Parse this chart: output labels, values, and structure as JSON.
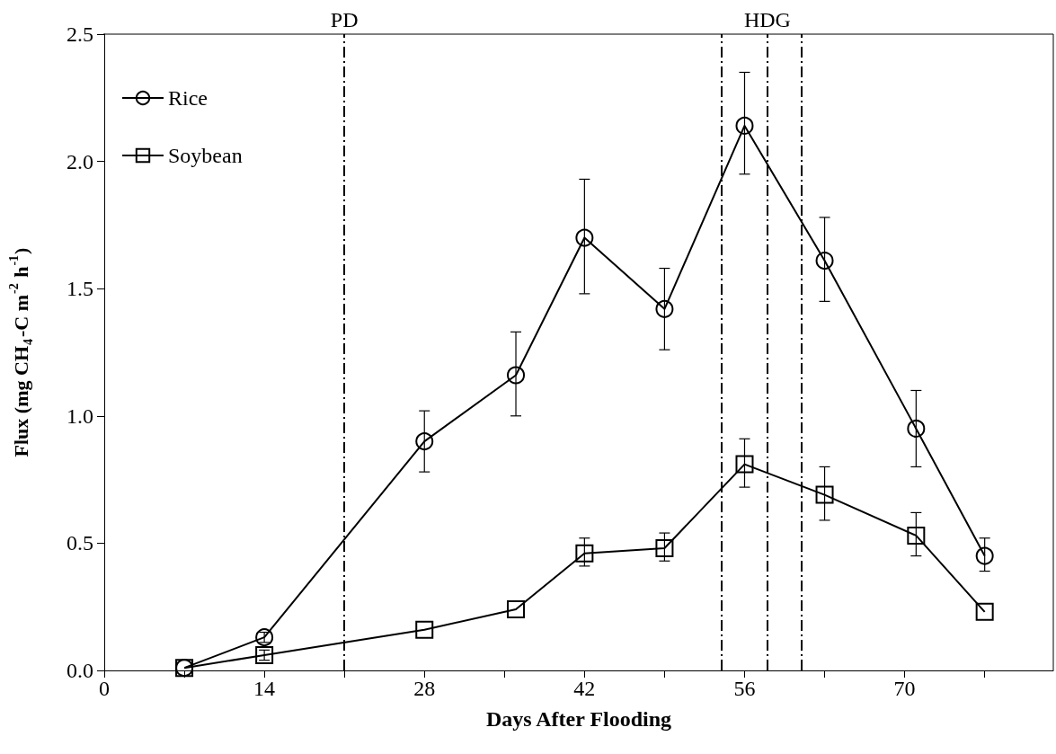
{
  "chart_data": {
    "type": "line",
    "xlabel": "Days After Flooding",
    "ylabel": "Flux (mg CH$_{4}$-C m$^{-2}$ h$^{-1}$)",
    "xlim": [
      0,
      83
    ],
    "xticks": [
      0,
      {
        "value": 7,
        "label": null
      },
      14,
      {
        "value": 21,
        "label": null
      },
      28,
      {
        "value": 35,
        "label": null
      },
      42,
      {
        "value": 49,
        "label": null
      },
      56,
      {
        "value": 63,
        "label": null
      },
      70,
      {
        "value": 77,
        "label": null
      }
    ],
    "ylim": [
      0,
      2.5
    ],
    "yticks": [
      {
        "value": 0,
        "label": "0.0"
      },
      {
        "value": 0.5,
        "label": "0.5"
      },
      {
        "value": 1,
        "label": "1.0"
      },
      {
        "value": 1.5,
        "label": "1.5"
      },
      {
        "value": 2,
        "label": "2.0"
      },
      {
        "value": 2.5,
        "label": "2.5"
      }
    ],
    "x": [
      7,
      14,
      28,
      36,
      42,
      49,
      56,
      63,
      71,
      77
    ],
    "series": [
      {
        "name": "Rice",
        "color": "#000000",
        "marker": "circle",
        "values": [
          0.01,
          0.13,
          0.9,
          1.16,
          1.7,
          1.42,
          2.14,
          1.61,
          0.95,
          0.45
        ],
        "errors": [
          null,
          [
            0.11,
            0.15
          ],
          [
            0.78,
            1.02
          ],
          [
            1.0,
            1.33
          ],
          [
            1.48,
            1.93
          ],
          [
            1.26,
            1.58
          ],
          [
            1.95,
            2.35
          ],
          [
            1.45,
            1.78
          ],
          [
            0.8,
            1.1
          ],
          [
            0.39,
            0.52
          ]
        ]
      },
      {
        "name": "Soybean",
        "color": "#000000",
        "marker": "square",
        "values": [
          0.01,
          0.06,
          0.16,
          0.24,
          0.46,
          0.48,
          0.81,
          0.69,
          0.53,
          0.23
        ],
        "errors": [
          null,
          [
            0.04,
            0.08
          ],
          null,
          null,
          [
            0.41,
            0.52
          ],
          [
            0.43,
            0.54
          ],
          [
            0.72,
            0.91
          ],
          [
            0.59,
            0.8
          ],
          [
            0.45,
            0.62
          ],
          null
        ]
      }
    ],
    "ref_lines": [
      {
        "axis": "x",
        "value": 21,
        "label": "PD",
        "line_style": "dashed"
      },
      {
        "axis": "x",
        "value": 54,
        "label": null,
        "line_style": "dashed"
      },
      {
        "axis": "x",
        "value": 58,
        "label": "HDG",
        "line_style": "dashed"
      },
      {
        "axis": "x",
        "value": 61,
        "label": null,
        "line_style": "dashed"
      }
    ],
    "legend": "top left",
    "grid": false,
    "line_style": "solid"
  }
}
